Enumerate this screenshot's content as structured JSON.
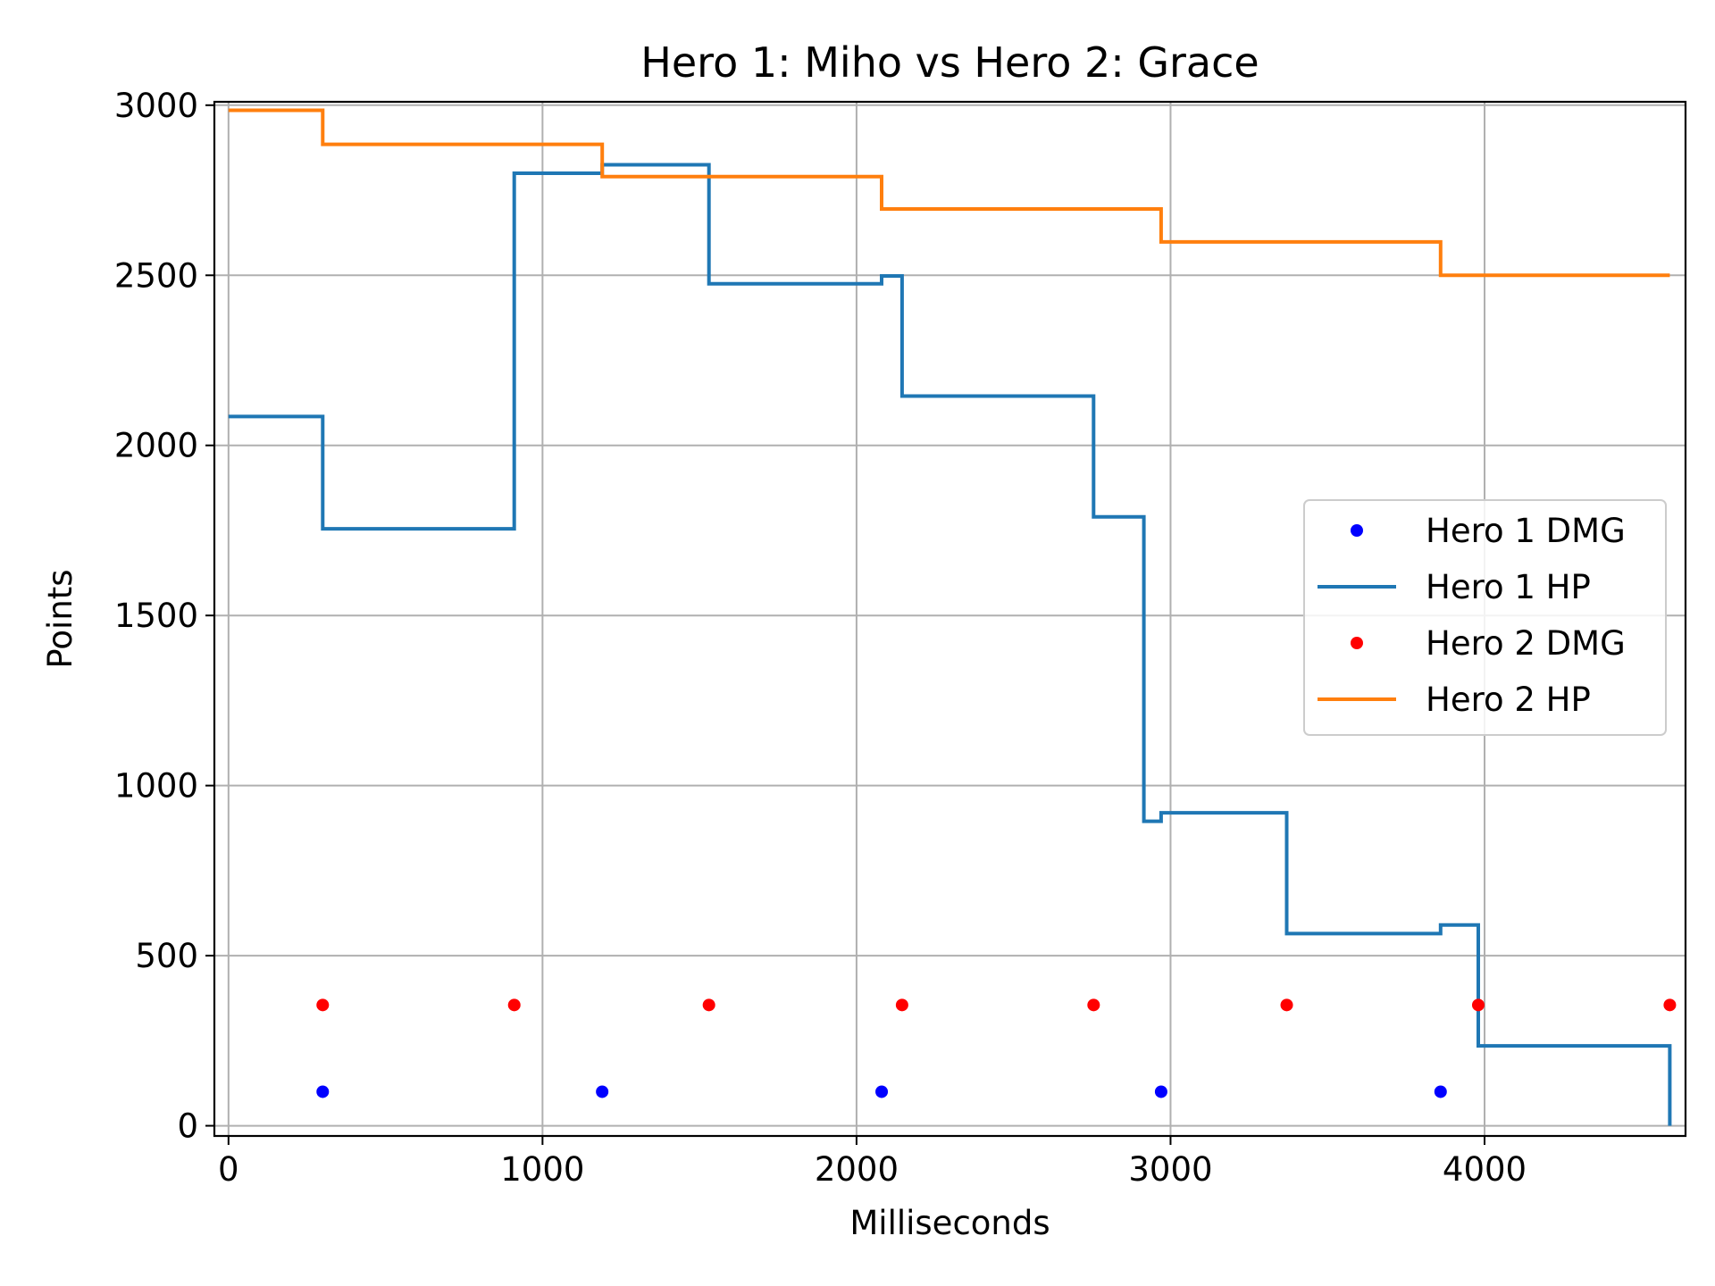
{
  "chart_data": {
    "type": "line",
    "title": "Hero 1: Miho vs Hero 2: Grace",
    "xlabel": "Milliseconds",
    "ylabel": "Points",
    "xlim": [
      -45,
      4640
    ],
    "ylim": [
      -30,
      3010
    ],
    "xticks": [
      0,
      1000,
      2000,
      3000,
      4000
    ],
    "yticks": [
      0,
      500,
      1000,
      1500,
      2000,
      2500,
      3000
    ],
    "grid": true,
    "legend_position": "center-right",
    "series": [
      {
        "name": "Hero 1 DMG",
        "kind": "scatter",
        "color": "#0000ff",
        "points": [
          [
            300,
            100
          ],
          [
            1190,
            100
          ],
          [
            2080,
            100
          ],
          [
            2970,
            100
          ],
          [
            3860,
            100
          ]
        ]
      },
      {
        "name": "Hero 1 HP",
        "kind": "step",
        "color": "#1f77b4",
        "points": [
          [
            0,
            2085
          ],
          [
            300,
            2085
          ],
          [
            300,
            1755
          ],
          [
            910,
            1755
          ],
          [
            910,
            2800
          ],
          [
            1190,
            2800
          ],
          [
            1190,
            2825
          ],
          [
            1530,
            2825
          ],
          [
            1530,
            2475
          ],
          [
            2080,
            2475
          ],
          [
            2080,
            2498
          ],
          [
            2145,
            2498
          ],
          [
            2145,
            2145
          ],
          [
            2755,
            2145
          ],
          [
            2755,
            1790
          ],
          [
            2915,
            1790
          ],
          [
            2915,
            895
          ],
          [
            2970,
            895
          ],
          [
            2970,
            920
          ],
          [
            3370,
            920
          ],
          [
            3370,
            565
          ],
          [
            3860,
            565
          ],
          [
            3860,
            590
          ],
          [
            3980,
            590
          ],
          [
            3980,
            235
          ],
          [
            4590,
            235
          ],
          [
            4590,
            0
          ]
        ]
      },
      {
        "name": "Hero 2 DMG",
        "kind": "scatter",
        "color": "#ff0000",
        "points": [
          [
            300,
            355
          ],
          [
            910,
            355
          ],
          [
            1530,
            355
          ],
          [
            2145,
            355
          ],
          [
            2755,
            355
          ],
          [
            3370,
            355
          ],
          [
            3980,
            355
          ],
          [
            4590,
            355
          ]
        ]
      },
      {
        "name": "Hero 2 HP",
        "kind": "step",
        "color": "#ff7f0e",
        "points": [
          [
            0,
            2985
          ],
          [
            300,
            2985
          ],
          [
            300,
            2885
          ],
          [
            1190,
            2885
          ],
          [
            1190,
            2790
          ],
          [
            2080,
            2790
          ],
          [
            2080,
            2695
          ],
          [
            2970,
            2695
          ],
          [
            2970,
            2598
          ],
          [
            3860,
            2598
          ],
          [
            3860,
            2500
          ],
          [
            4590,
            2500
          ]
        ]
      }
    ]
  }
}
